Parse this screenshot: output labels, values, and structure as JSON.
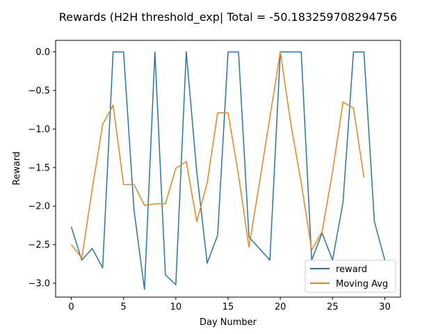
{
  "chart_data": {
    "type": "line",
    "title": "Rewards (H2H threshold_exp| Total = -50.183259708294756",
    "xlabel": "Day Number",
    "ylabel": "Reward",
    "xlim": [
      -1.5,
      31.5
    ],
    "ylim": [
      -3.18,
      0.15
    ],
    "xticks": [
      0,
      5,
      10,
      15,
      20,
      25,
      30
    ],
    "yticks": [
      0.0,
      -0.5,
      -1.0,
      -1.5,
      -2.0,
      -2.5,
      -3.0
    ],
    "xtick_labels": [
      "0",
      "5",
      "10",
      "15",
      "20",
      "25",
      "30"
    ],
    "ytick_labels": [
      "0.0",
      "−0.5",
      "−1.0",
      "−1.5",
      "−2.0",
      "−2.5",
      "−3.0"
    ],
    "grid": false,
    "legend_position": "lower-right",
    "series": [
      {
        "name": "reward",
        "color": "#1f77b4",
        "x": [
          0,
          1,
          2,
          3,
          4,
          5,
          6,
          7,
          8,
          9,
          10,
          11,
          12,
          13,
          14,
          15,
          16,
          17,
          18,
          19,
          20,
          21,
          22,
          23,
          24,
          25,
          26,
          27,
          28,
          29,
          30
        ],
        "y": [
          -2.27,
          -2.7,
          -2.55,
          -2.8,
          0.0,
          0.0,
          -2.05,
          -3.08,
          0.0,
          -2.89,
          -3.02,
          0.0,
          -1.55,
          -2.74,
          -2.38,
          0.0,
          0.0,
          -2.4,
          -2.55,
          -2.7,
          0.0,
          0.0,
          0.0,
          -2.7,
          -2.35,
          -2.7,
          -1.95,
          0.0,
          0.0,
          -2.2,
          -2.7
        ]
      },
      {
        "name": "Moving Avg",
        "color": "#ff7f0e",
        "x": [
          0,
          1,
          2,
          3,
          4,
          5,
          6,
          7,
          8,
          9,
          10,
          11,
          12,
          13,
          14,
          15,
          16,
          17,
          18,
          19,
          20,
          21,
          22,
          23,
          24,
          25,
          26,
          27,
          28
        ],
        "y": [
          -2.5,
          -2.67,
          -1.78,
          -0.94,
          -0.69,
          -1.72,
          -1.72,
          -1.99,
          -1.97,
          -1.97,
          -1.51,
          -1.42,
          -2.2,
          -1.7,
          -0.79,
          -0.79,
          -1.6,
          -2.53,
          -1.7,
          -0.85,
          0.0,
          -0.93,
          -1.7,
          -2.57,
          -2.33,
          -1.55,
          -0.65,
          -0.73,
          -1.63
        ]
      }
    ]
  }
}
